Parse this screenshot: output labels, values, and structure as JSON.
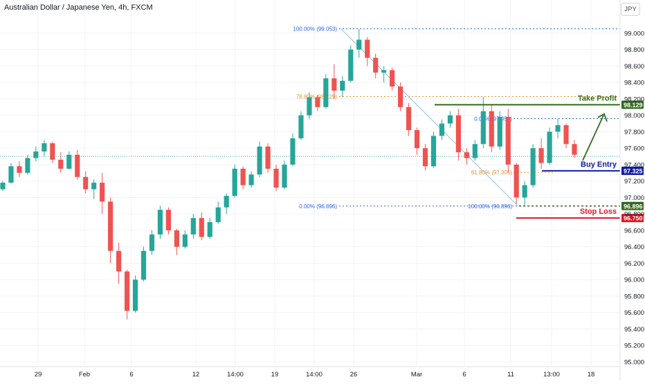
{
  "header": {
    "title": "Australian Dollar / Japanese Yen, 4h, FXCM",
    "currency_button": "JPY"
  },
  "colors": {
    "up": "#26a69a",
    "down": "#ef5350",
    "grid": "#f0f3fa",
    "fib_blue": "#2962ff",
    "fib_orange": "#e3922b",
    "take_profit": "#33691e",
    "buy_entry": "#0d1aa6",
    "stop_loss": "#e0141e",
    "trend_line": "#90b8d8"
  },
  "chart_data": {
    "type": "candlestick",
    "symbol": "AUDJPY",
    "timeframe": "4h",
    "ylim": [
      95.0,
      99.1
    ],
    "y_ticks": [
      "99.000",
      "98.800",
      "98.600",
      "98.400",
      "98.200",
      "98.000",
      "97.800",
      "97.600",
      "97.400",
      "97.200",
      "97.000",
      "96.800",
      "96.600",
      "96.400",
      "96.200",
      "96.000",
      "95.800",
      "95.600",
      "95.400",
      "95.200",
      "95.000"
    ],
    "x_ticks": [
      "29",
      "Feb",
      "6",
      "12",
      "14:00",
      "19",
      "14:00",
      "26",
      "Mar",
      "6",
      "11",
      "13:00",
      "18"
    ],
    "price_line": 97.5,
    "candles": [
      [
        97.1,
        97.2,
        97.08,
        97.18
      ],
      [
        97.18,
        97.42,
        97.17,
        97.38
      ],
      [
        97.38,
        97.44,
        97.25,
        97.3
      ],
      [
        97.3,
        97.52,
        97.28,
        97.48
      ],
      [
        97.48,
        97.62,
        97.44,
        97.56
      ],
      [
        97.56,
        97.7,
        97.5,
        97.66
      ],
      [
        97.66,
        97.68,
        97.42,
        97.46
      ],
      [
        97.46,
        97.55,
        97.3,
        97.35
      ],
      [
        97.35,
        97.56,
        97.34,
        97.52
      ],
      [
        97.52,
        97.58,
        97.22,
        97.25
      ],
      [
        97.25,
        97.32,
        97.05,
        97.1
      ],
      [
        97.1,
        97.22,
        96.98,
        97.18
      ],
      [
        97.18,
        97.3,
        96.8,
        96.95
      ],
      [
        96.95,
        97.0,
        96.2,
        96.35
      ],
      [
        96.35,
        96.45,
        95.95,
        96.1
      ],
      [
        96.1,
        96.12,
        95.52,
        95.62
      ],
      [
        95.62,
        96.05,
        95.6,
        96.0
      ],
      [
        96.0,
        96.4,
        95.98,
        96.35
      ],
      [
        96.35,
        96.6,
        96.3,
        96.55
      ],
      [
        96.55,
        96.9,
        96.5,
        96.85
      ],
      [
        96.85,
        96.88,
        96.55,
        96.6
      ],
      [
        96.6,
        96.62,
        96.3,
        96.4
      ],
      [
        96.4,
        96.6,
        96.38,
        96.55
      ],
      [
        96.55,
        96.8,
        96.5,
        96.75
      ],
      [
        96.75,
        96.82,
        96.48,
        96.52
      ],
      [
        96.52,
        96.75,
        96.5,
        96.7
      ],
      [
        96.7,
        96.95,
        96.68,
        96.88
      ],
      [
        96.88,
        97.05,
        96.8,
        97.02
      ],
      [
        97.02,
        97.4,
        97.0,
        97.35
      ],
      [
        97.35,
        97.38,
        97.1,
        97.15
      ],
      [
        97.15,
        97.32,
        97.12,
        97.28
      ],
      [
        97.28,
        97.68,
        97.25,
        97.62
      ],
      [
        97.62,
        97.66,
        97.3,
        97.35
      ],
      [
        97.35,
        97.4,
        97.08,
        97.12
      ],
      [
        97.12,
        97.45,
        97.1,
        97.4
      ],
      [
        97.4,
        97.78,
        97.38,
        97.72
      ],
      [
        97.72,
        98.05,
        97.7,
        98.0
      ],
      [
        98.0,
        98.28,
        97.95,
        98.22
      ],
      [
        98.22,
        98.25,
        98.05,
        98.1
      ],
      [
        98.1,
        98.5,
        98.08,
        98.45
      ],
      [
        98.45,
        98.62,
        98.2,
        98.3
      ],
      [
        98.3,
        98.48,
        98.22,
        98.42
      ],
      [
        98.42,
        98.85,
        98.4,
        98.8
      ],
      [
        98.8,
        99.05,
        98.7,
        98.92
      ],
      [
        98.92,
        98.95,
        98.6,
        98.7
      ],
      [
        98.7,
        98.75,
        98.45,
        98.52
      ],
      [
        98.52,
        98.6,
        98.4,
        98.55
      ],
      [
        98.55,
        98.58,
        98.3,
        98.35
      ],
      [
        98.35,
        98.4,
        98.05,
        98.1
      ],
      [
        98.1,
        98.15,
        97.75,
        97.82
      ],
      [
        97.82,
        97.85,
        97.52,
        97.6
      ],
      [
        97.6,
        97.65,
        97.33,
        97.38
      ],
      [
        97.38,
        97.8,
        97.36,
        97.75
      ],
      [
        97.75,
        97.95,
        97.7,
        97.9
      ],
      [
        97.9,
        98.05,
        97.85,
        98.0
      ],
      [
        98.0,
        98.08,
        97.45,
        97.55
      ],
      [
        97.55,
        97.6,
        97.4,
        97.48
      ],
      [
        97.48,
        97.7,
        97.45,
        97.65
      ],
      [
        97.65,
        98.22,
        97.6,
        98.05
      ],
      [
        98.05,
        98.12,
        97.55,
        97.62
      ],
      [
        97.62,
        98.05,
        97.58,
        97.98
      ],
      [
        97.98,
        98.08,
        97.3,
        97.4
      ],
      [
        97.4,
        97.42,
        96.92,
        97.0
      ],
      [
        97.0,
        97.2,
        96.89,
        97.15
      ],
      [
        97.15,
        97.65,
        97.12,
        97.6
      ],
      [
        97.6,
        97.72,
        97.35,
        97.42
      ],
      [
        97.42,
        97.85,
        97.4,
        97.8
      ],
      [
        97.8,
        97.96,
        97.72,
        97.88
      ],
      [
        97.88,
        97.9,
        97.6,
        97.65
      ],
      [
        97.65,
        97.7,
        97.48,
        97.52
      ]
    ],
    "annotations": {
      "fib_levels": [
        {
          "label": "100.00% (99.053)",
          "value": 99.053,
          "color": "fib_blue"
        },
        {
          "label": "78.80% (98.229)",
          "value": 98.229,
          "color": "fib_orange"
        },
        {
          "label": "0.00% (96.896)",
          "value": 96.896,
          "color": "fib_blue"
        },
        {
          "label": "0.00% (97.959)",
          "value": 97.959,
          "color": "fib_blue"
        },
        {
          "label": "61.80% (97.305)",
          "value": 97.305,
          "color": "fib_orange"
        },
        {
          "label": "100.00% (96.896)",
          "value": 96.896,
          "color": "fib_blue"
        }
      ],
      "take_profit": {
        "label": "Take Profit",
        "value": 98.129,
        "price_label": "98.129"
      },
      "buy_entry": {
        "label": "Buy Entry",
        "value": 97.325,
        "price_label": "97.325"
      },
      "support_level": {
        "value": 96.896,
        "price_label": "96.896"
      },
      "stop_loss": {
        "label": "Stop Loss",
        "value": 96.75,
        "price_label": "96.750"
      }
    }
  }
}
